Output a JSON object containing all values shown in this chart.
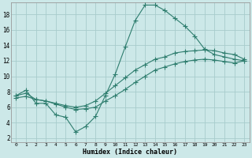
{
  "xlabel": "Humidex (Indice chaleur)",
  "bg_color": "#cce8e8",
  "grid_color": "#a8cccc",
  "line_color": "#2e7d6e",
  "xlim": [
    -0.5,
    23.5
  ],
  "ylim": [
    1.5,
    19.5
  ],
  "xticks": [
    0,
    1,
    2,
    3,
    4,
    5,
    6,
    7,
    8,
    9,
    10,
    11,
    12,
    13,
    14,
    15,
    16,
    17,
    18,
    19,
    20,
    21,
    22,
    23
  ],
  "yticks": [
    2,
    4,
    6,
    8,
    10,
    12,
    14,
    16,
    18
  ],
  "line1_x": [
    0,
    1,
    2,
    3,
    4,
    5,
    6,
    7,
    8,
    9,
    10,
    11,
    12,
    13,
    14,
    15,
    16,
    17,
    18,
    19,
    20,
    21,
    22,
    23
  ],
  "line1_y": [
    7.5,
    8.2,
    6.5,
    6.5,
    5.0,
    4.7,
    2.8,
    3.5,
    4.8,
    7.5,
    10.3,
    13.8,
    17.2,
    19.2,
    19.2,
    18.5,
    17.5,
    16.5,
    15.2,
    13.5,
    12.8,
    12.5,
    12.2,
    12.0
  ],
  "line2_x": [
    0,
    1,
    2,
    3,
    4,
    5,
    6,
    7,
    8,
    9,
    10,
    11,
    12,
    13,
    14,
    15,
    16,
    17,
    18,
    19,
    20,
    21,
    22,
    23
  ],
  "line2_y": [
    7.5,
    7.8,
    7.0,
    6.8,
    6.5,
    6.2,
    6.0,
    6.2,
    6.8,
    7.8,
    8.8,
    9.8,
    10.8,
    11.5,
    12.2,
    12.5,
    13.0,
    13.2,
    13.3,
    13.4,
    13.3,
    13.0,
    12.8,
    12.2
  ],
  "line3_x": [
    0,
    1,
    2,
    3,
    4,
    5,
    6,
    7,
    8,
    9,
    10,
    11,
    12,
    13,
    14,
    15,
    16,
    17,
    18,
    19,
    20,
    21,
    22,
    23
  ],
  "line3_y": [
    7.2,
    7.4,
    7.0,
    6.8,
    6.4,
    6.0,
    5.7,
    5.8,
    6.0,
    6.8,
    7.5,
    8.3,
    9.2,
    10.0,
    10.8,
    11.2,
    11.6,
    11.9,
    12.1,
    12.2,
    12.1,
    11.9,
    11.7,
    12.0
  ]
}
